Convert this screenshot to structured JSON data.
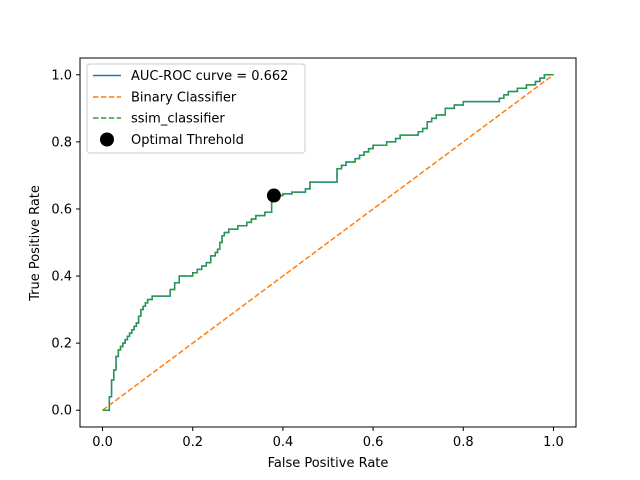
{
  "chart_data": {
    "type": "line",
    "title": "",
    "xlabel": "False Positive Rate",
    "ylabel": "True Positive Rate",
    "xlim": [
      -0.05,
      1.05
    ],
    "ylim": [
      -0.05,
      1.05
    ],
    "xticks": [
      0.0,
      0.2,
      0.4,
      0.6,
      0.8,
      1.0
    ],
    "yticks": [
      0.0,
      0.2,
      0.4,
      0.6,
      0.8,
      1.0
    ],
    "xtick_labels": [
      "0.0",
      "0.2",
      "0.4",
      "0.6",
      "0.8",
      "1.0"
    ],
    "ytick_labels": [
      "0.0",
      "0.2",
      "0.4",
      "0.6",
      "0.8",
      "1.0"
    ],
    "grid": false,
    "legend_position": "top-left",
    "roc": {
      "fpr": [
        0.0,
        0.015,
        0.015,
        0.02,
        0.02,
        0.025,
        0.025,
        0.03,
        0.03,
        0.035,
        0.035,
        0.04,
        0.04,
        0.045,
        0.045,
        0.05,
        0.05,
        0.055,
        0.055,
        0.06,
        0.06,
        0.065,
        0.065,
        0.07,
        0.07,
        0.075,
        0.075,
        0.08,
        0.08,
        0.085,
        0.085,
        0.09,
        0.09,
        0.095,
        0.095,
        0.1,
        0.1,
        0.11,
        0.11,
        0.15,
        0.15,
        0.16,
        0.16,
        0.17,
        0.17,
        0.2,
        0.2,
        0.21,
        0.21,
        0.22,
        0.22,
        0.23,
        0.23,
        0.24,
        0.24,
        0.25,
        0.25,
        0.255,
        0.255,
        0.26,
        0.26,
        0.265,
        0.265,
        0.27,
        0.27,
        0.28,
        0.28,
        0.3,
        0.3,
        0.32,
        0.32,
        0.33,
        0.33,
        0.34,
        0.34,
        0.36,
        0.36,
        0.375,
        0.375,
        0.38,
        0.38,
        0.4,
        0.4,
        0.42,
        0.42,
        0.45,
        0.45,
        0.46,
        0.46,
        0.52,
        0.52,
        0.53,
        0.53,
        0.54,
        0.54,
        0.56,
        0.56,
        0.57,
        0.57,
        0.58,
        0.58,
        0.59,
        0.59,
        0.6,
        0.6,
        0.63,
        0.63,
        0.65,
        0.65,
        0.66,
        0.66,
        0.7,
        0.7,
        0.71,
        0.71,
        0.72,
        0.72,
        0.73,
        0.73,
        0.74,
        0.74,
        0.76,
        0.76,
        0.78,
        0.78,
        0.8,
        0.8,
        0.88,
        0.88,
        0.89,
        0.89,
        0.9,
        0.9,
        0.92,
        0.92,
        0.94,
        0.94,
        0.96,
        0.96,
        0.97,
        0.97,
        0.98,
        0.98,
        1.0
      ],
      "tpr": [
        0.0,
        0.0,
        0.04,
        0.04,
        0.09,
        0.09,
        0.12,
        0.12,
        0.16,
        0.16,
        0.18,
        0.18,
        0.19,
        0.19,
        0.2,
        0.2,
        0.21,
        0.21,
        0.22,
        0.22,
        0.23,
        0.23,
        0.24,
        0.24,
        0.25,
        0.25,
        0.26,
        0.26,
        0.28,
        0.28,
        0.3,
        0.3,
        0.31,
        0.31,
        0.32,
        0.32,
        0.33,
        0.33,
        0.34,
        0.34,
        0.36,
        0.36,
        0.38,
        0.38,
        0.4,
        0.4,
        0.41,
        0.41,
        0.42,
        0.42,
        0.43,
        0.43,
        0.44,
        0.44,
        0.46,
        0.46,
        0.47,
        0.47,
        0.48,
        0.48,
        0.5,
        0.5,
        0.52,
        0.52,
        0.53,
        0.53,
        0.54,
        0.54,
        0.55,
        0.55,
        0.56,
        0.56,
        0.57,
        0.57,
        0.58,
        0.58,
        0.59,
        0.59,
        0.63,
        0.63,
        0.64,
        0.64,
        0.645,
        0.645,
        0.65,
        0.65,
        0.66,
        0.66,
        0.68,
        0.68,
        0.72,
        0.72,
        0.73,
        0.73,
        0.74,
        0.74,
        0.75,
        0.75,
        0.76,
        0.76,
        0.77,
        0.77,
        0.78,
        0.78,
        0.79,
        0.79,
        0.8,
        0.8,
        0.81,
        0.81,
        0.82,
        0.82,
        0.83,
        0.83,
        0.84,
        0.84,
        0.86,
        0.86,
        0.87,
        0.87,
        0.88,
        0.88,
        0.9,
        0.9,
        0.91,
        0.91,
        0.92,
        0.92,
        0.93,
        0.93,
        0.94,
        0.94,
        0.95,
        0.95,
        0.96,
        0.96,
        0.97,
        0.97,
        0.98,
        0.98,
        0.99,
        0.99,
        1.0,
        1.0
      ]
    },
    "series": [
      {
        "name": "AUC-ROC curve = 0.662",
        "style": "solid",
        "color": "#1f77b4"
      },
      {
        "name": "Binary Classifier",
        "style": "dashed",
        "color": "#ff7f0e",
        "x": [
          0,
          1
        ],
        "y": [
          0,
          1
        ]
      },
      {
        "name": "ssim_classifier",
        "style": "dashed",
        "color": "#2ca02c"
      },
      {
        "name": "Optimal Threhold",
        "style": "marker",
        "color": "#000000",
        "x": [
          0.38
        ],
        "y": [
          0.64
        ]
      }
    ]
  }
}
